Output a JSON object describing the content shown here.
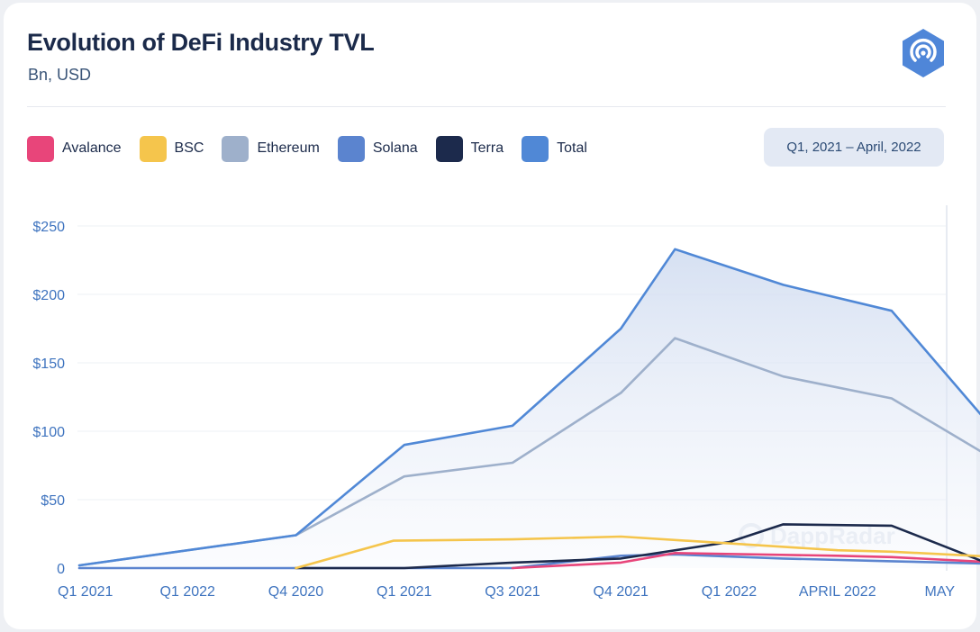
{
  "header": {
    "title": "Evolution of DeFi Industry TVL",
    "subtitle": "Bn, USD",
    "logo_icon": "dappradar-logo-icon"
  },
  "date_range": {
    "label": "Q1, 2021 – April, 2022"
  },
  "watermark": "DappRadar",
  "legend": [
    {
      "name": "Avalance",
      "color": "#e8457a"
    },
    {
      "name": "BSC",
      "color": "#f5c54c"
    },
    {
      "name": "Ethereum",
      "color": "#9eb0cb"
    },
    {
      "name": "Solana",
      "color": "#5b84cf"
    },
    {
      "name": "Terra",
      "color": "#1c2a4c"
    },
    {
      "name": "Total",
      "color": "#5088d6"
    }
  ],
  "chart_data": {
    "type": "line",
    "categories": [
      "Q1 2021",
      "Q1 2022",
      "Q4 2020",
      "Q1 2021",
      "Q3 2021",
      "Q4 2021",
      "Q1 2022",
      "APRIL 2022",
      "MAY"
    ],
    "y_tick_labels": [
      "$250",
      "$200",
      "$150",
      "$100",
      "$50",
      "0"
    ],
    "y_ticks": [
      250,
      200,
      150,
      100,
      50,
      0
    ],
    "ylim": [
      0,
      250
    ],
    "grid": true,
    "legend_position": "top-left",
    "series": [
      {
        "name": "Total",
        "color": "#5088d6",
        "fill": true,
        "points": [
          [
            0,
            2
          ],
          [
            2,
            24
          ],
          [
            3,
            90
          ],
          [
            4,
            104
          ],
          [
            5,
            175
          ],
          [
            5.5,
            233
          ],
          [
            6.5,
            207
          ],
          [
            7.5,
            188
          ],
          [
            8.5,
            96
          ]
        ]
      },
      {
        "name": "Ethereum",
        "color": "#9eb0cb",
        "points": [
          [
            0,
            2
          ],
          [
            2,
            24
          ],
          [
            3,
            67
          ],
          [
            4,
            77
          ],
          [
            5,
            128
          ],
          [
            5.5,
            168
          ],
          [
            6.5,
            140
          ],
          [
            7.5,
            124
          ],
          [
            8.5,
            77
          ]
        ]
      },
      {
        "name": "BSC",
        "color": "#f5c54c",
        "points": [
          [
            2,
            0
          ],
          [
            2.9,
            20
          ],
          [
            4,
            21
          ],
          [
            5,
            23
          ],
          [
            6,
            18
          ],
          [
            7,
            13
          ],
          [
            7.5,
            12
          ],
          [
            8.5,
            8
          ]
        ]
      },
      {
        "name": "Terra",
        "color": "#1c2a4c",
        "points": [
          [
            2,
            0
          ],
          [
            3,
            0
          ],
          [
            4,
            4
          ],
          [
            5,
            7
          ],
          [
            6,
            19
          ],
          [
            6.5,
            32
          ],
          [
            7.5,
            31
          ],
          [
            8.5,
            0
          ]
        ]
      },
      {
        "name": "Avalance",
        "color": "#e8457a",
        "points": [
          [
            4,
            0
          ],
          [
            5,
            4
          ],
          [
            5.5,
            11
          ],
          [
            7,
            9
          ],
          [
            7.5,
            8
          ],
          [
            8.5,
            4
          ]
        ]
      },
      {
        "name": "Solana",
        "color": "#5b84cf",
        "points": [
          [
            0,
            0
          ],
          [
            2,
            0
          ],
          [
            4,
            0
          ],
          [
            5,
            9
          ],
          [
            5.5,
            10
          ],
          [
            6.5,
            7
          ],
          [
            7.5,
            5
          ],
          [
            8.5,
            3
          ]
        ]
      }
    ]
  }
}
